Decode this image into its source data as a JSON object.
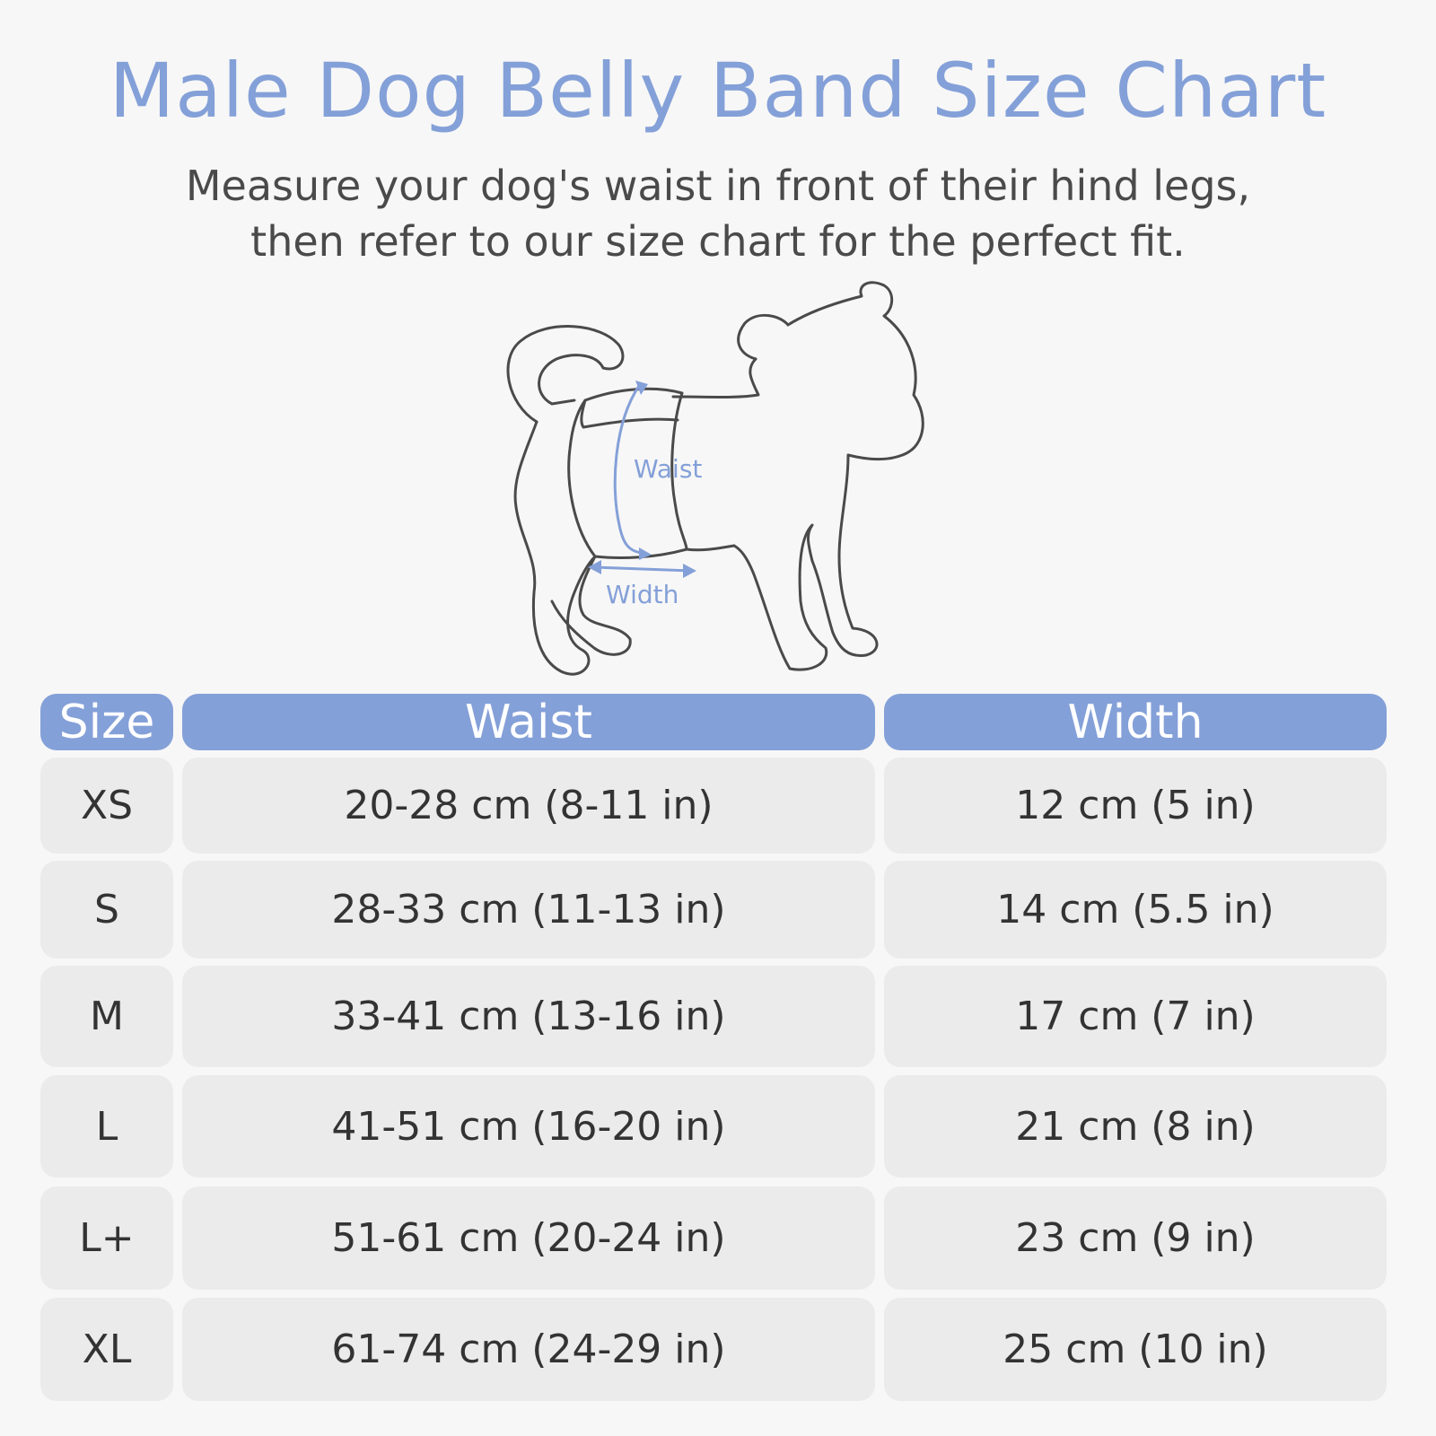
{
  "title": "Male Dog Belly Band Size Chart",
  "subtitle": {
    "line1": "Measure your dog's waist in front of their hind legs,",
    "line2": "then refer to our size chart for the perfect fit."
  },
  "diagram": {
    "waist_label": "Waist",
    "width_label": "Width",
    "accent_color": "#84a0d8",
    "outline_color": "#4a4a4a"
  },
  "chart_data": {
    "type": "table",
    "columns": [
      "Size",
      "Waist",
      "Width"
    ],
    "rows": [
      {
        "size": "XS",
        "waist": "20-28 cm (8-11 in)",
        "width": "12 cm (5 in)"
      },
      {
        "size": "S",
        "waist": "28-33 cm (11-13 in)",
        "width": "14 cm (5.5 in)"
      },
      {
        "size": "M",
        "waist": "33-41 cm (13-16 in)",
        "width": "17 cm (7 in)"
      },
      {
        "size": "L",
        "waist": "41-51 cm (16-20 in)",
        "width": "21 cm (8 in)"
      },
      {
        "size": "L+",
        "waist": "51-61 cm (20-24 in)",
        "width": "23 cm (9 in)"
      },
      {
        "size": "XL",
        "waist": "61-74 cm (24-29 in)",
        "width": "25 cm (10 in)"
      }
    ]
  },
  "colors": {
    "header_bg": "#84a0d8",
    "cell_bg": "#ebebeb",
    "page_bg": "#f7f7f7",
    "title_color": "#84a0d8"
  }
}
